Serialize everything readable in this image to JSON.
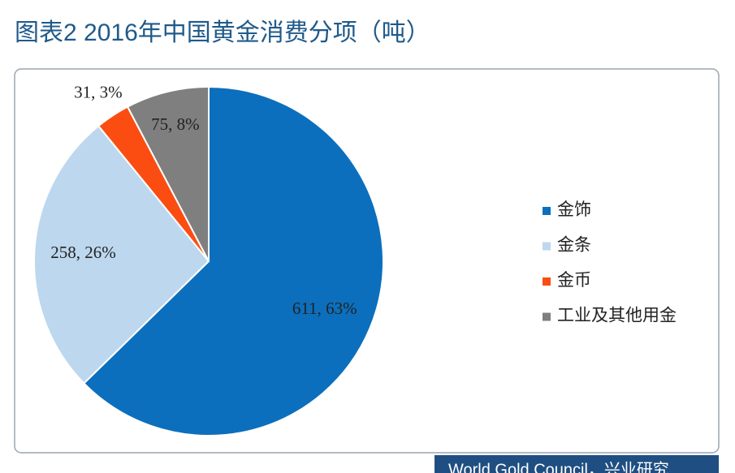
{
  "chart_data": {
    "type": "pie",
    "title": "图表2 2016年中国黄金消费分项（吨）",
    "source": "World Gold Council，兴业研究",
    "categories": [
      "金饰",
      "金条",
      "金币",
      "工业及其他用金"
    ],
    "values": [
      611,
      258,
      31,
      75
    ],
    "value_labels": [
      "611, 63%",
      "258, 26%",
      "31, 3%",
      "75, 8%"
    ],
    "colors": [
      "#0b6fbd",
      "#bdd7ee",
      "#fb4d12",
      "#7f7f7f"
    ],
    "legend": "right"
  }
}
